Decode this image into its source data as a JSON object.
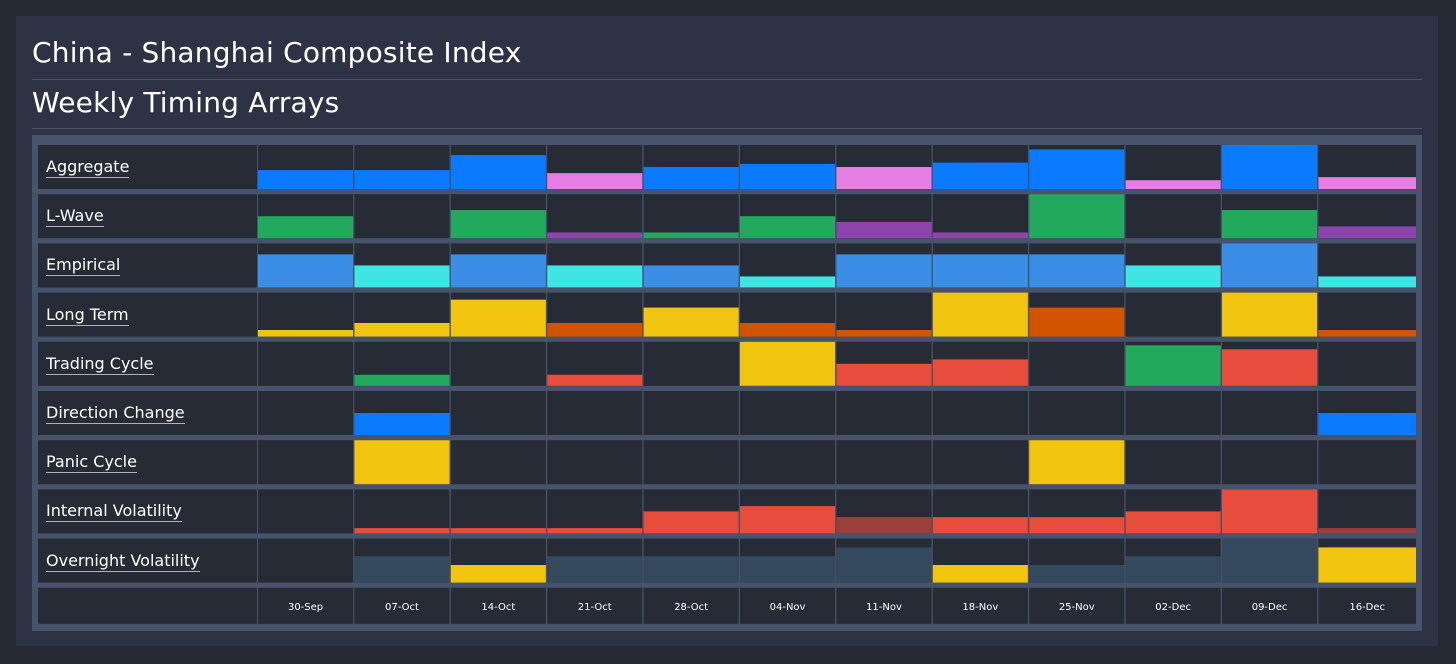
{
  "header": {
    "title": "China - Shanghai Composite Index",
    "subtitle": "Weekly Timing Arrays"
  },
  "colors": {
    "empty_cell": "#262b36",
    "grid_bg": "#46536b",
    "blue": "#0a7bff",
    "pink": "#e57ee1",
    "green": "#23a95e",
    "purple": "#8e44ad",
    "sky": "#3a8ee6",
    "cyan": "#3ee5e2",
    "yellow": "#f1c40f",
    "orange": "#d35400",
    "red": "#e74c3c",
    "dark_red": "#9b3f3d",
    "slate": "#34495e"
  },
  "chart_data": {
    "type": "heatmap",
    "categories": [
      "30-Sep",
      "07-Oct",
      "14-Oct",
      "21-Oct",
      "28-Oct",
      "04-Nov",
      "11-Nov",
      "18-Nov",
      "25-Nov",
      "02-Dec",
      "09-Dec",
      "16-Dec"
    ],
    "value_range": [
      0,
      1
    ],
    "series": [
      {
        "name": "Aggregate",
        "values": [
          0.43,
          0.43,
          0.77,
          0.36,
          0.5,
          0.57,
          0.5,
          0.6,
          0.9,
          0.2,
          1.0,
          0.27
        ],
        "colors": [
          "blue",
          "blue",
          "blue",
          "pink",
          "blue",
          "blue",
          "pink",
          "blue",
          "blue",
          "pink",
          "blue",
          "pink"
        ]
      },
      {
        "name": "L-Wave",
        "values": [
          0.5,
          0,
          0.64,
          0.13,
          0.13,
          0.5,
          0.37,
          0.13,
          1.0,
          0,
          0.64,
          0.27
        ],
        "colors": [
          "green",
          null,
          "green",
          "purple",
          "green",
          "green",
          "purple",
          "purple",
          "green",
          null,
          "green",
          "purple"
        ]
      },
      {
        "name": "Empirical",
        "values": [
          0.75,
          0.5,
          0.75,
          0.5,
          0.5,
          0.25,
          0.75,
          0.75,
          0.75,
          0.5,
          1.0,
          0.25
        ],
        "colors": [
          "sky",
          "cyan",
          "sky",
          "cyan",
          "sky",
          "cyan",
          "sky",
          "sky",
          "sky",
          "cyan",
          "sky",
          "cyan"
        ]
      },
      {
        "name": "Long Term",
        "values": [
          0.15,
          0.31,
          0.84,
          0.31,
          0.66,
          0.31,
          0.15,
          1.0,
          0.66,
          0,
          1.0,
          0.15
        ],
        "colors": [
          "yellow",
          "yellow",
          "yellow",
          "orange",
          "yellow",
          "orange",
          "orange",
          "yellow",
          "orange",
          null,
          "yellow",
          "orange"
        ]
      },
      {
        "name": "Trading Cycle",
        "values": [
          0,
          0.25,
          0,
          0.25,
          0,
          1.0,
          0.5,
          0.6,
          0,
          0.92,
          0.83,
          0
        ],
        "colors": [
          null,
          "green",
          null,
          "red",
          null,
          "yellow",
          "red",
          "red",
          null,
          "green",
          "red",
          null
        ]
      },
      {
        "name": "Direction Change",
        "values": [
          0,
          0.5,
          0,
          0,
          0,
          0,
          0,
          0,
          0,
          0,
          0,
          0.5
        ],
        "colors": [
          null,
          "blue",
          null,
          null,
          null,
          null,
          null,
          null,
          null,
          null,
          null,
          "blue"
        ]
      },
      {
        "name": "Panic Cycle",
        "values": [
          0,
          1.0,
          0,
          0,
          0,
          0,
          0,
          0,
          1.0,
          0,
          0,
          0
        ],
        "colors": [
          null,
          "yellow",
          null,
          null,
          null,
          null,
          null,
          null,
          "yellow",
          null,
          null,
          null
        ]
      },
      {
        "name": "Internal Volatility",
        "values": [
          0,
          0.12,
          0.12,
          0.12,
          0.5,
          0.62,
          0.37,
          0.37,
          0.37,
          0.5,
          1.0,
          0.12
        ],
        "colors": [
          null,
          "red",
          "red",
          "red",
          "red",
          "red",
          "dark_red",
          "red",
          "red",
          "red",
          "red",
          "dark_red"
        ]
      },
      {
        "name": "Overnight Volatility",
        "values": [
          0,
          0.6,
          0.4,
          0.6,
          0.6,
          0.6,
          0.8,
          0.4,
          0.4,
          0.6,
          1.0,
          0.8
        ],
        "colors": [
          null,
          "slate",
          "yellow",
          "slate",
          "slate",
          "slate",
          "slate",
          "yellow",
          "slate",
          "slate",
          "slate",
          "yellow"
        ]
      }
    ]
  }
}
